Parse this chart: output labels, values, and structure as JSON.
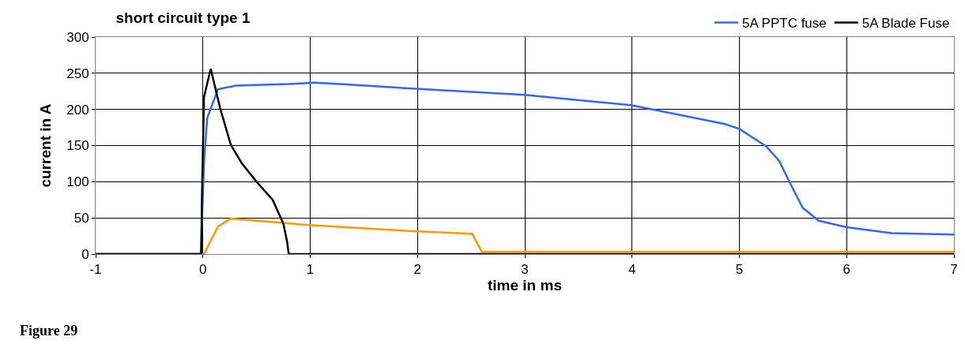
{
  "chart_data": {
    "type": "line",
    "title": "short circuit type 1",
    "xlabel": "time in ms",
    "ylabel": "current in A",
    "annotations": [
      "Figure 29"
    ],
    "xlim": [
      -1,
      7
    ],
    "xticks": [
      -1,
      0,
      1,
      2,
      3,
      4,
      5,
      6,
      7
    ],
    "ylim": [
      0,
      300
    ],
    "yticks": [
      0,
      50,
      100,
      150,
      200,
      250,
      300
    ],
    "grid": true,
    "legend": "top right",
    "marker": "none",
    "line_style": "solid",
    "series": [
      {
        "color": "#ff9900",
        "x": [
          -1,
          0.01,
          0.14,
          0.26,
          0.99,
          1.92,
          2.51,
          2.6,
          3,
          7
        ],
        "values": [
          0,
          0,
          38,
          49,
          40,
          32,
          28,
          3,
          3,
          3
        ]
      },
      {
        "name": "5A PPTC fuse",
        "color": "#3366ff",
        "x": [
          -1,
          -0.02,
          0.01,
          0.04,
          0.14,
          0.31,
          0.8,
          1.04,
          1.28,
          1.92,
          3.0,
          3.99,
          4.86,
          5.0,
          5.25,
          5.37,
          5.49,
          5.59,
          5.74,
          6.0,
          6.42,
          7.0
        ],
        "values": [
          0,
          0,
          126,
          188,
          228,
          233,
          235,
          237,
          235,
          229,
          220,
          206,
          180,
          173,
          149,
          129,
          93,
          64,
          46,
          37,
          29,
          27
        ]
      },
      {
        "name": "5A Blade Fuse",
        "color": "#000000",
        "x": [
          -1,
          -0.015,
          -0.01,
          0.01,
          0.073,
          0.16,
          0.26,
          0.36,
          0.5,
          0.65,
          0.75,
          0.785,
          0.8,
          7
        ],
        "values": [
          0,
          0,
          71,
          217,
          256,
          202,
          151,
          126,
          100,
          75,
          42,
          17,
          0,
          0
        ]
      }
    ]
  }
}
